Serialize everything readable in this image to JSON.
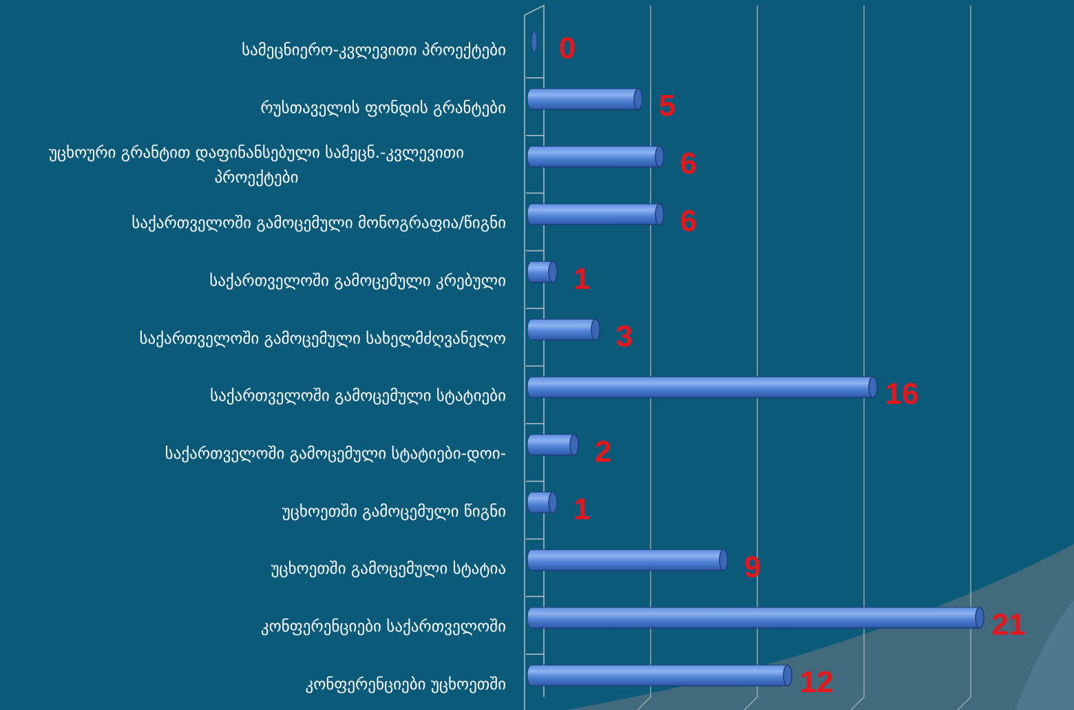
{
  "chart_data": {
    "type": "bar",
    "orientation": "horizontal",
    "style": "3d-cylinder",
    "title": "",
    "xlabel": "",
    "ylabel": "",
    "categories": [
      "სამეცნიერო-კვლევითი პროექტები",
      "რუსთაველის ფონდის გრანტები",
      "უცხოური გრანტით დაფინანსებული სამეცნ.-კვლევითი პროექტები",
      "საქართველოში გამოცემული მონოგრაფია/წიგნი",
      "საქართველოში გამოცემული კრებული",
      "საქართველოში გამოცემული სახელმძღვანელო",
      "საქართველოში გამოცემული სტატიები",
      "საქართველოში გამოცემული სტატიები-დოი-",
      "უცხოეთში გამოცემული წიგნი",
      "უცხოეთში გამოცემული სტატია",
      "კონფერენციები საქართველოში",
      "კონფერენციები უცხოეთში"
    ],
    "values": [
      0,
      5,
      6,
      6,
      1,
      3,
      16,
      2,
      1,
      9,
      21,
      12
    ],
    "xlim": [
      0,
      25
    ],
    "grid": true,
    "grid_step": 5,
    "legend": "none",
    "data_labels": true
  },
  "colors": {
    "background": "#0b5a79",
    "swoosh": "#4b6f7d",
    "bar_light": "#8db3f0",
    "bar_mid": "#4e80d4",
    "bar_dark": "#2d58a8",
    "bar_cap": "#3c68b8",
    "bar_outline": "#1e3c78",
    "data_label": "#e8161b",
    "category_label": "#ffffff",
    "gridline": "#9aa7ae",
    "axis": "#b9c2c7"
  }
}
